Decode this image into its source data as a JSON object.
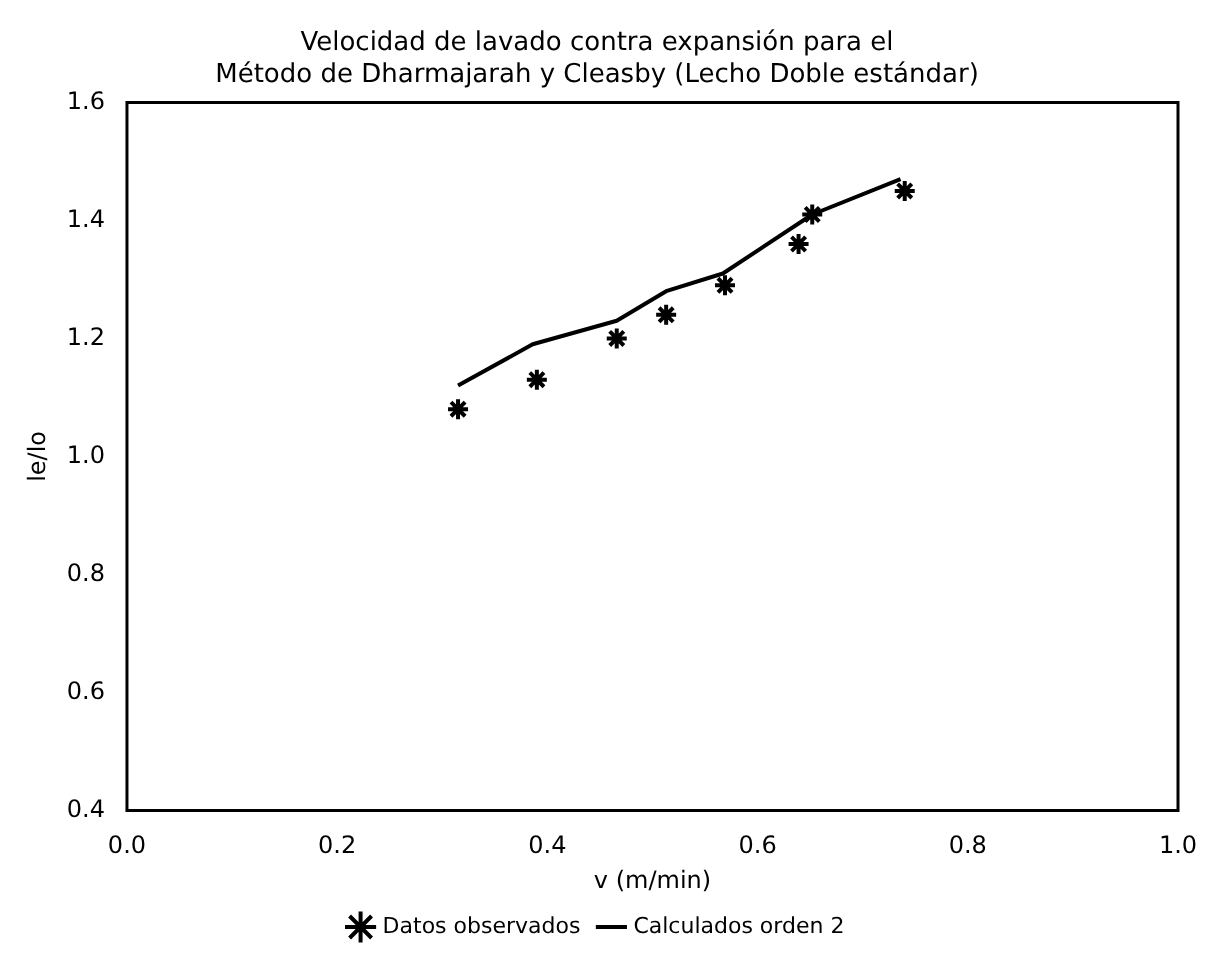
{
  "chart_data": {
    "type": "scatter",
    "title": "Velocidad de lavado contra expansión para el\nMétodo de Dharmajarah y Cleasby (Lecho Doble estándar)",
    "xlabel": "v (m/min)",
    "ylabel": "le/lo",
    "xlim": [
      0,
      1
    ],
    "xticks": [
      {
        "value": 0,
        "label": "0.0"
      },
      {
        "value": 0.2,
        "label": "0.2"
      },
      {
        "value": 0.4,
        "label": "0.4"
      },
      {
        "value": 0.6,
        "label": "0.6"
      },
      {
        "value": 0.8,
        "label": "0.8"
      },
      {
        "value": 1,
        "label": "1.0"
      }
    ],
    "ylim": [
      0.4,
      1.6
    ],
    "yticks": [
      {
        "value": 0.4,
        "label": "0.4"
      },
      {
        "value": 0.6,
        "label": "0.6"
      },
      {
        "value": 0.8,
        "label": "0.8"
      },
      {
        "value": 1,
        "label": "1.0"
      },
      {
        "value": 1.2,
        "label": "1.2"
      },
      {
        "value": 1.4,
        "label": "1.4"
      },
      {
        "value": 1.6,
        "label": "1.6"
      }
    ],
    "grid": false,
    "legend": "bottom",
    "series": [
      {
        "name": "Datos observados",
        "type": "scatter",
        "marker": "cross",
        "color": "#000000",
        "x": [
          0.315,
          0.39,
          0.466,
          0.513,
          0.569,
          0.639,
          0.652,
          0.74
        ],
        "values": [
          1.08,
          1.13,
          1.2,
          1.24,
          1.29,
          1.36,
          1.41,
          1.45
        ]
      },
      {
        "name": "Calculados orden 2",
        "type": "line",
        "marker": "none",
        "line_style": "solid",
        "color": "#000000",
        "x": [
          0.315,
          0.386,
          0.466,
          0.513,
          0.567,
          0.652,
          0.736
        ],
        "values": [
          1.12,
          1.19,
          1.23,
          1.28,
          1.31,
          1.41,
          1.47
        ]
      }
    ]
  }
}
